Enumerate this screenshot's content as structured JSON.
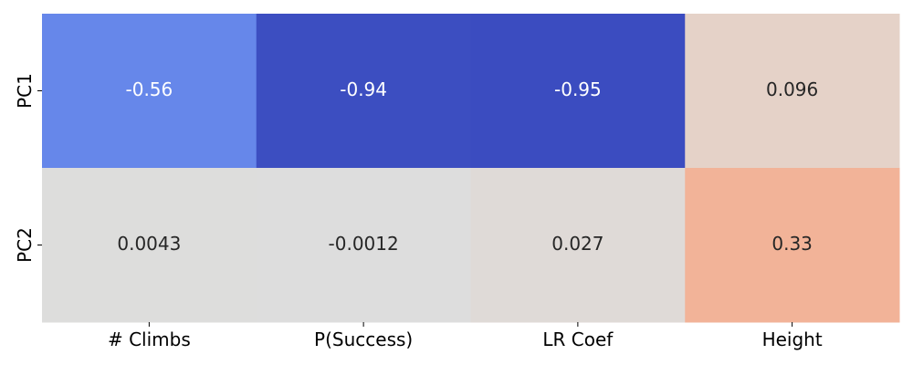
{
  "chart_data": {
    "type": "heatmap",
    "title": "",
    "xlabel": "",
    "ylabel": "",
    "x_categories": [
      "# Climbs",
      "P(Success)",
      "LR Coef",
      "Height"
    ],
    "y_categories": [
      "PC1",
      "PC2"
    ],
    "values": [
      [
        -0.56,
        -0.94,
        -0.95,
        0.096
      ],
      [
        0.0043,
        -0.0012,
        0.027,
        0.33
      ]
    ],
    "cell_labels": [
      [
        "-0.56",
        "-0.94",
        "-0.95",
        "0.096"
      ],
      [
        "0.0043",
        "-0.0012",
        "0.027",
        "0.33"
      ]
    ],
    "colormap": "coolwarm",
    "color_range": [
      -0.95,
      0.95
    ],
    "colorbar": false,
    "grid": false,
    "colors": {
      "text_dark": "#262626",
      "text_light": "#ffffff",
      "tick": "#000000"
    }
  }
}
